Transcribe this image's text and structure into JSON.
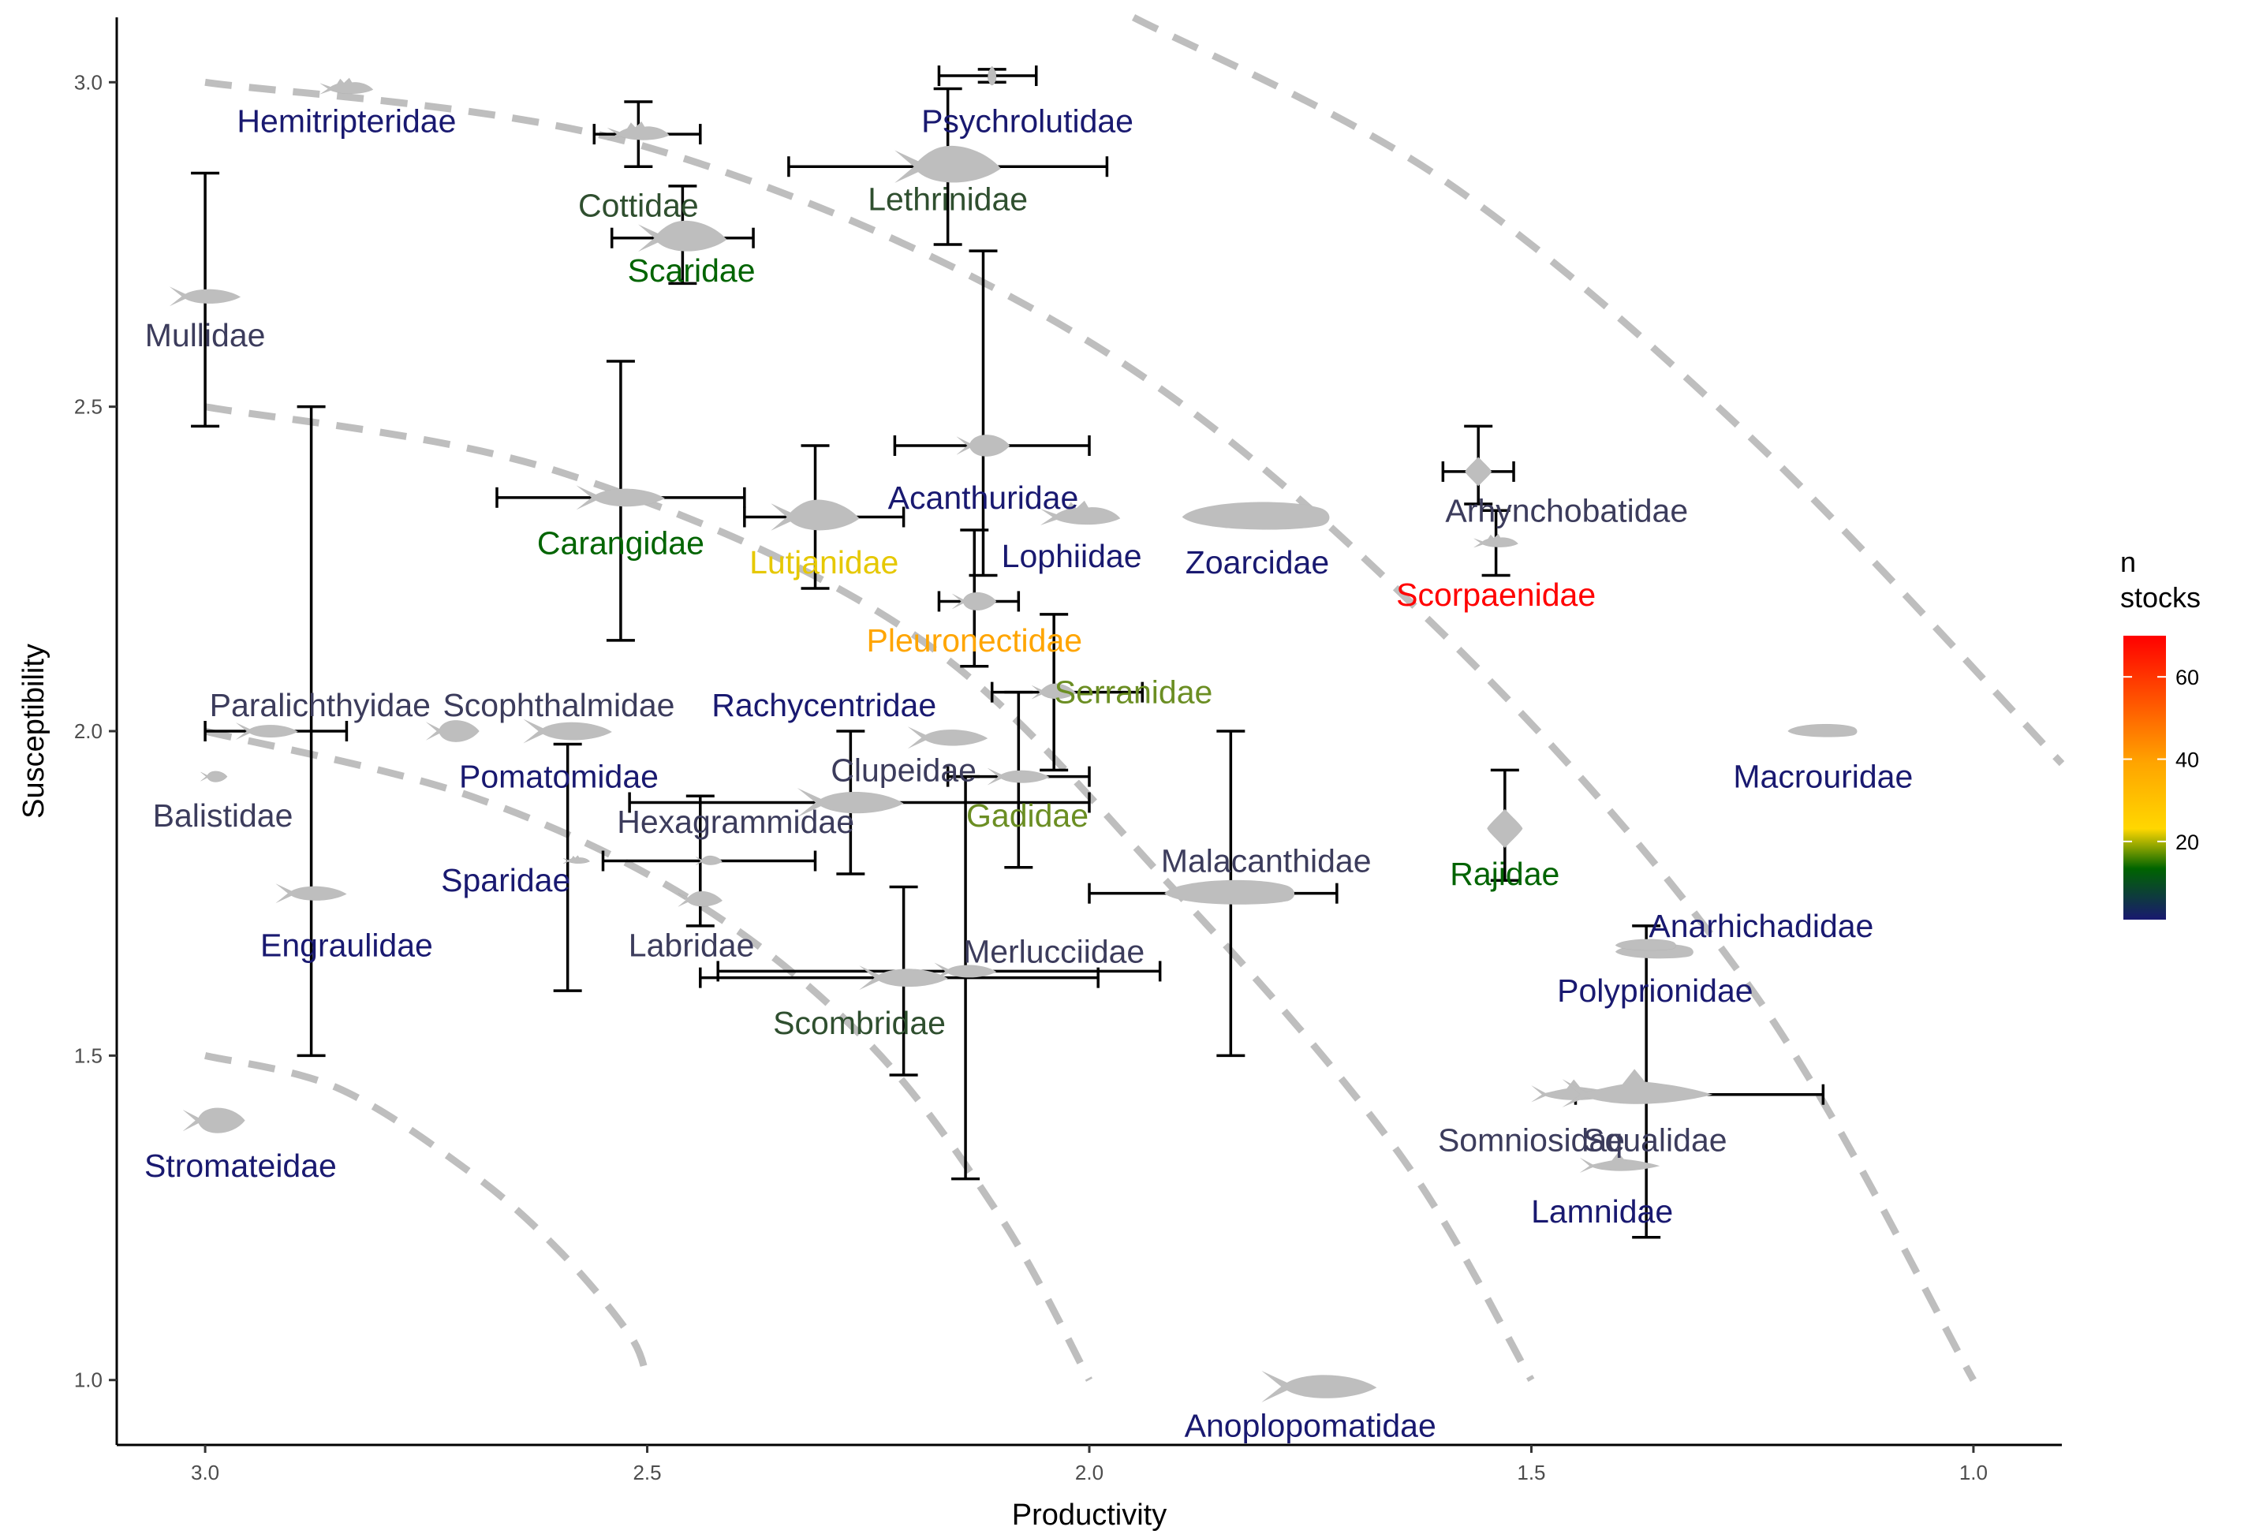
{
  "chart_data": {
    "type": "scatter",
    "xlabel": "Productivity",
    "ylabel": "Susceptibility",
    "xlim": [
      3.1,
      0.9
    ],
    "x_reversed": true,
    "ylim": [
      0.9,
      3.1
    ],
    "x_ticks": [
      3.0,
      2.5,
      2.0,
      1.5,
      1.0
    ],
    "y_ticks": [
      1.0,
      1.5,
      2.0,
      2.5,
      3.0
    ],
    "x_tick_labels": [
      "3.0",
      "2.5",
      "2.0",
      "1.5",
      "1.0"
    ],
    "y_tick_labels": [
      "1.0",
      "1.5",
      "2.0",
      "2.5",
      "3.0"
    ],
    "grid": false,
    "background": "#ffffff",
    "marker": "fish-silhouette",
    "marker_fill": "#bebebe",
    "contour_color": "#bebebe",
    "contours": [
      {
        "x": [
          3.0,
          2.85,
          2.7,
          2.6,
          2.52,
          2.5
        ],
        "y": [
          1.5,
          1.45,
          1.32,
          1.2,
          1.07,
          1.0
        ]
      },
      {
        "x": [
          3.0,
          2.7,
          2.45,
          2.25,
          2.1,
          2.0
        ],
        "y": [
          2.0,
          1.9,
          1.74,
          1.52,
          1.25,
          1.0
        ]
      },
      {
        "x": [
          3.0,
          2.6,
          2.2,
          1.9,
          1.65,
          1.5
        ],
        "y": [
          2.5,
          2.4,
          2.15,
          1.75,
          1.35,
          1.0
        ]
      },
      {
        "x": [
          3.0,
          2.5,
          2.0,
          1.6,
          1.25,
          1.0
        ],
        "y": [
          3.0,
          2.9,
          2.6,
          2.15,
          1.6,
          1.0
        ]
      },
      {
        "x": [
          1.95,
          1.6,
          1.25,
          0.9
        ],
        "y": [
          3.1,
          2.85,
          2.45,
          1.95
        ]
      }
    ],
    "colorbar": {
      "title_lines": [
        "n",
        "stocks"
      ],
      "min": 1,
      "max": 70,
      "ticks": [
        20,
        40,
        60
      ],
      "tick_labels": [
        "20",
        "40",
        "60"
      ],
      "colors": [
        "#191970",
        "#006400",
        "#ffd700",
        "#ffa500",
        "#ff0000"
      ],
      "stops": [
        0,
        0.18,
        0.32,
        0.55,
        1.0
      ]
    },
    "points": [
      {
        "label": "Hemitripteridae",
        "x": 2.84,
        "y": 2.99,
        "color": "#191970",
        "lx": 2.84,
        "ly": 2.94,
        "shape": "sculpin",
        "w": 0.06
      },
      {
        "label": "Cottidae",
        "x": 2.51,
        "y": 2.92,
        "xerr": [
          2.56,
          2.44
        ],
        "yerr": [
          2.87,
          2.97
        ],
        "color": "#2f4f2f",
        "lx": 2.51,
        "ly": 2.81,
        "shape": "sculpin",
        "w": 0.07
      },
      {
        "label": "Psychrolutidae",
        "x": 2.11,
        "y": 3.01,
        "xerr": [
          2.17,
          2.06
        ],
        "yerr": [
          3.02,
          3.0
        ],
        "color": "#191970",
        "lx": 2.07,
        "ly": 2.94,
        "shape": "drop",
        "w": 0.015
      },
      {
        "label": "Lethrinidae",
        "x": 2.16,
        "y": 2.87,
        "xerr": [
          2.34,
          1.98
        ],
        "yerr": [
          2.75,
          2.99
        ],
        "color": "#2f4f2f",
        "lx": 2.16,
        "ly": 2.82,
        "shape": "perch",
        "w": 0.12
      },
      {
        "label": "Scaridae",
        "x": 2.46,
        "y": 2.76,
        "xerr": [
          2.54,
          2.38
        ],
        "yerr": [
          2.69,
          2.84
        ],
        "color": "#006400",
        "lx": 2.45,
        "ly": 2.71,
        "shape": "perch",
        "w": 0.1
      },
      {
        "label": "Mullidae",
        "x": 3.0,
        "y": 2.67,
        "yerr": [
          2.47,
          2.86
        ],
        "color": "#3c3c5c",
        "lx": 3.0,
        "ly": 2.61,
        "shape": "fish",
        "w": 0.08
      },
      {
        "label": "Acanthuridae",
        "x": 2.12,
        "y": 2.44,
        "xerr": [
          2.22,
          2.0
        ],
        "yerr": [
          2.24,
          2.74
        ],
        "color": "#191970",
        "lx": 2.12,
        "ly": 2.36,
        "shape": "deep",
        "w": 0.06
      },
      {
        "label": "Carangidae",
        "x": 2.53,
        "y": 2.36,
        "xerr": [
          2.67,
          2.39
        ],
        "yerr": [
          2.14,
          2.57
        ],
        "color": "#006400",
        "lx": 2.53,
        "ly": 2.29,
        "shape": "fish",
        "w": 0.1
      },
      {
        "label": "Lutjanidae",
        "x": 2.31,
        "y": 2.33,
        "xerr": [
          2.39,
          2.21
        ],
        "yerr": [
          2.22,
          2.44
        ],
        "color": "#e6c800",
        "lx": 2.3,
        "ly": 2.26,
        "shape": "perch",
        "w": 0.1
      },
      {
        "label": "Lophiidae",
        "x": 2.01,
        "y": 2.33,
        "color": "#191970",
        "lx": 2.02,
        "ly": 2.27,
        "shape": "sculpin",
        "w": 0.09
      },
      {
        "label": "Zoarcidae",
        "x": 1.81,
        "y": 2.33,
        "color": "#191970",
        "lx": 1.81,
        "ly": 2.26,
        "shape": "eel",
        "w": 0.17
      },
      {
        "label": "Arhynchobatidae",
        "x": 1.56,
        "y": 2.4,
        "xerr": [
          1.6,
          1.52
        ],
        "yerr": [
          2.35,
          2.47
        ],
        "color": "#3c3c5c",
        "lx": 1.46,
        "ly": 2.34,
        "shape": "ray",
        "w": 0.03
      },
      {
        "label": "Scorpaenidae",
        "x": 1.54,
        "y": 2.29,
        "yerr": [
          2.24,
          2.34
        ],
        "color": "#ff0000",
        "lx": 1.54,
        "ly": 2.21,
        "shape": "sculpin",
        "w": 0.05
      },
      {
        "label": "Pleuronectidae",
        "x": 2.13,
        "y": 2.2,
        "xerr": [
          2.17,
          2.08
        ],
        "yerr": [
          2.1,
          2.31
        ],
        "color": "#ffa500",
        "lx": 2.13,
        "ly": 2.14,
        "shape": "deep",
        "w": 0.05
      },
      {
        "label": "Serranidae",
        "x": 2.04,
        "y": 2.06,
        "xerr": [
          2.11,
          1.94
        ],
        "yerr": [
          1.94,
          2.18
        ],
        "color": "#6b8e23",
        "lx": 1.95,
        "ly": 2.06,
        "shape": "perch",
        "w": 0.05
      },
      {
        "label": "Rachycentridae",
        "x": 2.16,
        "y": 1.99,
        "color": "#191970",
        "lx": 2.3,
        "ly": 2.04,
        "shape": "fish",
        "w": 0.09
      },
      {
        "label": "Paralichthyidae",
        "x": 2.93,
        "y": 2.0,
        "xerr": [
          3.0,
          2.84
        ],
        "color": "#3c3c5c",
        "lx": 2.87,
        "ly": 2.04,
        "shape": "fish",
        "w": 0.07
      },
      {
        "label": "Scophthalmidae",
        "x": 2.72,
        "y": 2.0,
        "color": "#3c3c5c",
        "lx": 2.6,
        "ly": 2.04,
        "shape": "deep",
        "w": 0.06
      },
      {
        "label": "Pomatomidae",
        "x": 2.59,
        "y": 2.0,
        "yerr": [
          1.6,
          1.98
        ],
        "color": "#191970",
        "lx": 2.6,
        "ly": 1.93,
        "shape": "fish",
        "w": 0.1
      },
      {
        "label": "Balistidae",
        "x": 2.99,
        "y": 1.93,
        "color": "#3c3c5c",
        "lx": 2.98,
        "ly": 1.87,
        "shape": "deep",
        "w": 0.03
      },
      {
        "label": "Clupeidae",
        "x": 2.27,
        "y": 1.89,
        "xerr": [
          2.52,
          2.0
        ],
        "yerr": [
          1.78,
          2.0
        ],
        "color": "#3c3c5c",
        "lx": 2.21,
        "ly": 1.94,
        "shape": "fish",
        "w": 0.12
      },
      {
        "label": "Gadidae",
        "x": 2.08,
        "y": 1.93,
        "xerr": [
          2.16,
          2.0
        ],
        "yerr": [
          1.79,
          2.06
        ],
        "color": "#6b8e23",
        "lx": 2.07,
        "ly": 1.87,
        "shape": "fish",
        "w": 0.07
      },
      {
        "label": "Hexagrammidae",
        "x": 2.58,
        "y": 1.8,
        "xerr": [
          2.55,
          2.31
        ],
        "color": "#3c3c5c",
        "lx": 2.4,
        "ly": 1.86,
        "shape": "sculpin",
        "w": 0.03
      },
      {
        "label": "Sparidae",
        "x": 2.43,
        "y": 1.8,
        "color": "#191970",
        "lx": 2.66,
        "ly": 1.77,
        "shape": "perch",
        "w": 0.03
      },
      {
        "label": "Engraulidae",
        "x": 2.88,
        "y": 1.75,
        "yerr": [
          1.5,
          2.5
        ],
        "color": "#191970",
        "lx": 2.84,
        "ly": 1.67,
        "shape": "fish",
        "w": 0.08
      },
      {
        "label": "Labridae",
        "x": 2.44,
        "y": 1.74,
        "yerr": [
          1.7,
          1.9
        ],
        "color": "#3c3c5c",
        "lx": 2.45,
        "ly": 1.67,
        "shape": "perch",
        "w": 0.05
      },
      {
        "label": "Malacanthidae",
        "x": 1.84,
        "y": 1.75,
        "xerr": [
          2.0,
          1.72
        ],
        "yerr": [
          1.5,
          2.0
        ],
        "color": "#3c3c5c",
        "lx": 1.8,
        "ly": 1.8,
        "shape": "eel",
        "w": 0.15
      },
      {
        "label": "Rajidae",
        "x": 1.53,
        "y": 1.85,
        "yerr": [
          1.77,
          1.94
        ],
        "color": "#006400",
        "lx": 1.53,
        "ly": 1.78,
        "shape": "ray",
        "w": 0.04
      },
      {
        "label": "Merlucciidae",
        "x": 2.14,
        "y": 1.63,
        "xerr": [
          2.42,
          1.92
        ],
        "yerr": [
          1.31,
          1.93
        ],
        "color": "#3c3c5c",
        "lx": 2.04,
        "ly": 1.66,
        "shape": "fish",
        "w": 0.07
      },
      {
        "label": "Scombridae",
        "x": 2.21,
        "y": 1.62,
        "xerr": [
          2.44,
          1.99
        ],
        "yerr": [
          1.47,
          1.76
        ],
        "color": "#2f4f2f",
        "lx": 2.26,
        "ly": 1.55,
        "shape": "fish",
        "w": 0.1
      },
      {
        "label": "Anarhichadidae",
        "x": 1.36,
        "y": 1.66,
        "color": "#191970",
        "lx": 1.24,
        "ly": 1.7,
        "shape": "eel",
        "w": 0.09
      },
      {
        "label": "Polyprionidae",
        "x": 1.37,
        "y": 1.67,
        "yerr": [
          1.22,
          1.7
        ],
        "color": "#191970",
        "lx": 1.36,
        "ly": 1.6,
        "shape": "eel",
        "w": 0.07
      },
      {
        "label": "Macrouridae",
        "x": 1.17,
        "y": 2.0,
        "color": "#191970",
        "lx": 1.17,
        "ly": 1.93,
        "shape": "eel",
        "w": 0.08
      },
      {
        "label": "Somniosidae",
        "x": 1.45,
        "y": 1.44,
        "xerr": [
          1.45,
          1.17
        ],
        "color": "#3c3c5c",
        "lx": 1.5,
        "ly": 1.37,
        "shape": "shark",
        "w": 0.1
      },
      {
        "label": "Squalidae",
        "x": 1.38,
        "y": 1.44,
        "color": "#3c3c5c",
        "lx": 1.36,
        "ly": 1.37,
        "shape": "shark",
        "w": 0.17
      },
      {
        "label": "Lamnidae",
        "x": 1.4,
        "y": 1.33,
        "color": "#191970",
        "lx": 1.42,
        "ly": 1.26,
        "shape": "shark",
        "w": 0.09
      },
      {
        "label": "Stromateidae",
        "x": 2.99,
        "y": 1.4,
        "color": "#191970",
        "lx": 2.96,
        "ly": 1.33,
        "shape": "deep",
        "w": 0.07
      },
      {
        "label": "Anoplopomatidae",
        "x": 1.74,
        "y": 0.99,
        "color": "#191970",
        "lx": 1.75,
        "ly": 0.93,
        "shape": "fish",
        "w": 0.13
      }
    ]
  }
}
